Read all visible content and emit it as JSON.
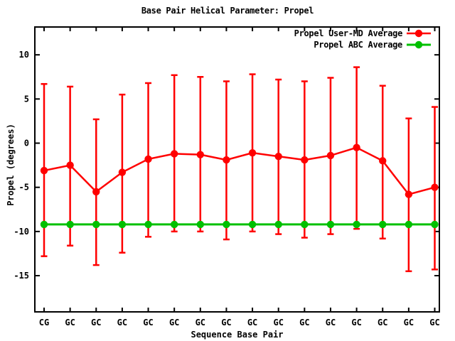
{
  "chart_data": {
    "type": "line",
    "title": "Base Pair Helical Parameter: Propel",
    "xlabel": "Sequence Base Pair",
    "ylabel": "Propel (degrees)",
    "categories": [
      "CG",
      "GC",
      "GC",
      "GC",
      "GC",
      "GC",
      "GC",
      "GC",
      "GC",
      "GC",
      "GC",
      "GC",
      "GC",
      "GC",
      "GC",
      "GC"
    ],
    "yticks": [
      10,
      5,
      0,
      -5,
      -10,
      -15
    ],
    "ylim": [
      -19.1,
      13.15
    ],
    "grid": false,
    "legend_position": "top-right-inside",
    "background_color": "#ffffff",
    "frame_color": "#000000",
    "series": [
      {
        "name": "Propel User-MD Average",
        "color": "#ff0000",
        "marker": "filled-circle",
        "style": "line-with-error-bars",
        "values": [
          -3.1,
          -2.5,
          -5.5,
          -3.3,
          -1.8,
          -1.2,
          -1.3,
          -1.9,
          -1.1,
          -1.5,
          -1.9,
          -1.4,
          -0.5,
          -2.0,
          -5.8,
          -5.0
        ],
        "err_low": [
          -12.8,
          -11.6,
          -13.8,
          -12.4,
          -10.6,
          -10.0,
          -10.0,
          -10.9,
          -10.0,
          -10.3,
          -10.7,
          -10.3,
          -9.7,
          -10.8,
          -14.5,
          -14.3
        ],
        "err_high": [
          6.7,
          6.4,
          2.7,
          5.5,
          6.8,
          7.7,
          7.5,
          7.0,
          7.8,
          7.2,
          7.0,
          7.4,
          8.6,
          6.5,
          2.8,
          4.1
        ]
      },
      {
        "name": "Propel ABC Average",
        "color": "#00c000",
        "marker": "filled-circle",
        "style": "line",
        "values": [
          -9.2,
          -9.2,
          -9.2,
          -9.2,
          -9.2,
          -9.2,
          -9.2,
          -9.2,
          -9.2,
          -9.2,
          -9.2,
          -9.2,
          -9.2,
          -9.2,
          -9.2,
          -9.2
        ]
      }
    ]
  }
}
